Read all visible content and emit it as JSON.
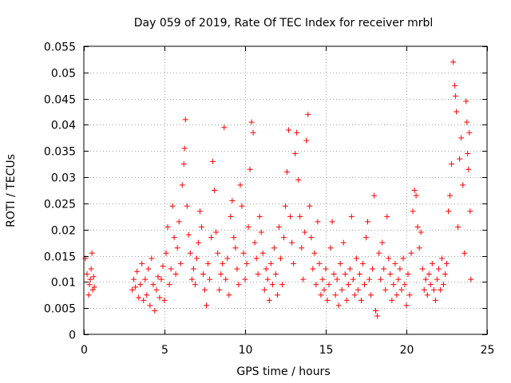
{
  "chart_data": {
    "type": "scatter",
    "title": "Day 059 of 2019, Rate Of TEC Index for receiver mrbl",
    "xlabel": "GPS time / hours",
    "ylabel": "ROTI / TECUs",
    "xlim": [
      0,
      25
    ],
    "ylim": [
      0,
      0.055
    ],
    "xticks": [
      0,
      5,
      10,
      15,
      20,
      25
    ],
    "xtick_labels": [
      "0",
      "5",
      "10",
      "15",
      "20",
      "25"
    ],
    "yticks": [
      0,
      0.005,
      0.01,
      0.015,
      0.02,
      0.025,
      0.03,
      0.035,
      0.04,
      0.045,
      0.05,
      0.055
    ],
    "ytick_labels": [
      "0",
      "0.005",
      "0.01",
      "0.015",
      "0.02",
      "0.025",
      "0.03",
      "0.035",
      "0.04",
      "0.045",
      "0.05",
      "0.055"
    ],
    "grid": true,
    "marker": "+",
    "color": "#ff0000",
    "series": [
      {
        "name": "ROTI",
        "points": [
          [
            0.1,
            0.0145
          ],
          [
            0.2,
            0.0115
          ],
          [
            0.3,
            0.0075
          ],
          [
            0.35,
            0.0095
          ],
          [
            0.4,
            0.0105
          ],
          [
            0.45,
            0.0125
          ],
          [
            0.5,
            0.0155
          ],
          [
            0.55,
            0.0085
          ],
          [
            0.6,
            0.011
          ],
          [
            0.65,
            0.009
          ],
          [
            3.0,
            0.0085
          ],
          [
            3.1,
            0.0105
          ],
          [
            3.2,
            0.009
          ],
          [
            3.3,
            0.012
          ],
          [
            3.4,
            0.007
          ],
          [
            3.5,
            0.0095
          ],
          [
            3.6,
            0.0135
          ],
          [
            3.7,
            0.0065
          ],
          [
            3.8,
            0.0105
          ],
          [
            3.9,
            0.0075
          ],
          [
            4.0,
            0.0125
          ],
          [
            4.1,
            0.0055
          ],
          [
            4.2,
            0.0145
          ],
          [
            4.3,
            0.0095
          ],
          [
            4.4,
            0.0045
          ],
          [
            4.5,
            0.0085
          ],
          [
            4.6,
            0.011
          ],
          [
            4.7,
            0.007
          ],
          [
            4.8,
            0.0105
          ],
          [
            4.9,
            0.013
          ],
          [
            5.0,
            0.0065
          ],
          [
            5.1,
            0.0155
          ],
          [
            5.2,
            0.0205
          ],
          [
            5.3,
            0.0095
          ],
          [
            5.4,
            0.0125
          ],
          [
            5.5,
            0.0245
          ],
          [
            5.6,
            0.0185
          ],
          [
            5.7,
            0.0115
          ],
          [
            5.8,
            0.0165
          ],
          [
            5.9,
            0.0215
          ],
          [
            6.0,
            0.0135
          ],
          [
            6.1,
            0.0285
          ],
          [
            6.2,
            0.0325
          ],
          [
            6.25,
            0.0355
          ],
          [
            6.3,
            0.041
          ],
          [
            6.4,
            0.0245
          ],
          [
            6.5,
            0.019
          ],
          [
            6.6,
            0.0155
          ],
          [
            6.7,
            0.0105
          ],
          [
            6.8,
            0.0125
          ],
          [
            6.9,
            0.0095
          ],
          [
            7.0,
            0.0145
          ],
          [
            7.1,
            0.0175
          ],
          [
            7.2,
            0.0235
          ],
          [
            7.3,
            0.0205
          ],
          [
            7.4,
            0.0115
          ],
          [
            7.5,
            0.0085
          ],
          [
            7.6,
            0.0055
          ],
          [
            7.7,
            0.0135
          ],
          [
            7.8,
            0.0105
          ],
          [
            7.9,
            0.0185
          ],
          [
            8.0,
            0.033
          ],
          [
            8.1,
            0.0275
          ],
          [
            8.2,
            0.0195
          ],
          [
            8.3,
            0.0155
          ],
          [
            8.4,
            0.0085
          ],
          [
            8.5,
            0.0115
          ],
          [
            8.6,
            0.0135
          ],
          [
            8.7,
            0.0395
          ],
          [
            8.8,
            0.0105
          ],
          [
            8.9,
            0.0145
          ],
          [
            9.0,
            0.0075
          ],
          [
            9.1,
            0.0225
          ],
          [
            9.2,
            0.0255
          ],
          [
            9.3,
            0.0185
          ],
          [
            9.4,
            0.0165
          ],
          [
            9.5,
            0.0125
          ],
          [
            9.6,
            0.0095
          ],
          [
            9.7,
            0.0285
          ],
          [
            9.8,
            0.0245
          ],
          [
            9.9,
            0.0155
          ],
          [
            10.0,
            0.0105
          ],
          [
            10.1,
            0.0135
          ],
          [
            10.2,
            0.0205
          ],
          [
            10.3,
            0.0315
          ],
          [
            10.4,
            0.0405
          ],
          [
            10.5,
            0.0385
          ],
          [
            10.6,
            0.0175
          ],
          [
            10.7,
            0.0145
          ],
          [
            10.8,
            0.0115
          ],
          [
            10.9,
            0.0225
          ],
          [
            11.0,
            0.0195
          ],
          [
            11.1,
            0.0155
          ],
          [
            11.2,
            0.0085
          ],
          [
            11.3,
            0.0125
          ],
          [
            11.4,
            0.0105
          ],
          [
            11.5,
            0.0065
          ],
          [
            11.6,
            0.0135
          ],
          [
            11.7,
            0.0095
          ],
          [
            11.8,
            0.0165
          ],
          [
            11.9,
            0.0115
          ],
          [
            12.0,
            0.0075
          ],
          [
            12.1,
            0.0205
          ],
          [
            12.2,
            0.0145
          ],
          [
            12.3,
            0.0095
          ],
          [
            12.4,
            0.0185
          ],
          [
            12.5,
            0.0245
          ],
          [
            12.6,
            0.031
          ],
          [
            12.7,
            0.039
          ],
          [
            12.8,
            0.0225
          ],
          [
            12.9,
            0.0175
          ],
          [
            13.0,
            0.0135
          ],
          [
            13.1,
            0.0345
          ],
          [
            13.2,
            0.0385
          ],
          [
            13.3,
            0.0295
          ],
          [
            13.4,
            0.0225
          ],
          [
            13.5,
            0.0165
          ],
          [
            13.6,
            0.0105
          ],
          [
            13.7,
            0.0195
          ],
          [
            13.8,
            0.037
          ],
          [
            13.9,
            0.042
          ],
          [
            14.0,
            0.0245
          ],
          [
            14.1,
            0.0185
          ],
          [
            14.2,
            0.0125
          ],
          [
            14.3,
            0.0155
          ],
          [
            14.4,
            0.0095
          ],
          [
            14.5,
            0.0215
          ],
          [
            14.6,
            0.0135
          ],
          [
            14.7,
            0.0075
          ],
          [
            14.8,
            0.0105
          ],
          [
            14.9,
            0.0085
          ],
          [
            15.0,
            0.0125
          ],
          [
            15.1,
            0.0065
          ],
          [
            15.2,
            0.0095
          ],
          [
            15.3,
            0.0165
          ],
          [
            15.4,
            0.0215
          ],
          [
            15.5,
            0.0115
          ],
          [
            15.6,
            0.0075
          ],
          [
            15.7,
            0.0105
          ],
          [
            15.8,
            0.0055
          ],
          [
            15.9,
            0.0135
          ],
          [
            16.0,
            0.0085
          ],
          [
            16.1,
            0.0175
          ],
          [
            16.2,
            0.0115
          ],
          [
            16.3,
            0.0065
          ],
          [
            16.4,
            0.0095
          ],
          [
            16.5,
            0.0125
          ],
          [
            16.6,
            0.0225
          ],
          [
            16.7,
            0.0105
          ],
          [
            16.8,
            0.0075
          ],
          [
            16.9,
            0.0145
          ],
          [
            17.0,
            0.0085
          ],
          [
            17.1,
            0.0115
          ],
          [
            17.2,
            0.0065
          ],
          [
            17.3,
            0.0135
          ],
          [
            17.4,
            0.0095
          ],
          [
            17.5,
            0.0185
          ],
          [
            17.6,
            0.0215
          ],
          [
            17.7,
            0.0105
          ],
          [
            17.8,
            0.0075
          ],
          [
            17.9,
            0.0125
          ],
          [
            18.0,
            0.0265
          ],
          [
            18.1,
            0.0045
          ],
          [
            18.2,
            0.0035
          ],
          [
            18.3,
            0.0155
          ],
          [
            18.4,
            0.0105
          ],
          [
            18.5,
            0.0175
          ],
          [
            18.6,
            0.0125
          ],
          [
            18.7,
            0.0085
          ],
          [
            18.8,
            0.0225
          ],
          [
            18.9,
            0.0145
          ],
          [
            19.0,
            0.0115
          ],
          [
            19.1,
            0.0065
          ],
          [
            19.2,
            0.0095
          ],
          [
            19.3,
            0.0135
          ],
          [
            19.4,
            0.0075
          ],
          [
            19.5,
            0.0105
          ],
          [
            19.6,
            0.0125
          ],
          [
            19.7,
            0.0085
          ],
          [
            19.8,
            0.0145
          ],
          [
            19.9,
            0.0095
          ],
          [
            20.0,
            0.0055
          ],
          [
            20.1,
            0.0115
          ],
          [
            20.2,
            0.0075
          ],
          [
            20.3,
            0.0155
          ],
          [
            20.4,
            0.0235
          ],
          [
            20.5,
            0.0275
          ],
          [
            20.6,
            0.0265
          ],
          [
            20.7,
            0.0205
          ],
          [
            20.8,
            0.0165
          ],
          [
            20.9,
            0.0195
          ],
          [
            21.0,
            0.0125
          ],
          [
            21.1,
            0.0085
          ],
          [
            21.2,
            0.0105
          ],
          [
            21.3,
            0.0075
          ],
          [
            21.4,
            0.0115
          ],
          [
            21.5,
            0.0095
          ],
          [
            21.6,
            0.0135
          ],
          [
            21.7,
            0.0085
          ],
          [
            21.8,
            0.0065
          ],
          [
            21.9,
            0.0105
          ],
          [
            22.0,
            0.0125
          ],
          [
            22.1,
            0.0085
          ],
          [
            22.2,
            0.0145
          ],
          [
            22.3,
            0.0095
          ],
          [
            22.4,
            0.0115
          ],
          [
            22.5,
            0.0135
          ],
          [
            22.6,
            0.0235
          ],
          [
            22.7,
            0.0265
          ],
          [
            22.8,
            0.0325
          ],
          [
            22.9,
            0.052
          ],
          [
            23.0,
            0.0475
          ],
          [
            23.05,
            0.0455
          ],
          [
            23.1,
            0.0425
          ],
          [
            23.2,
            0.0205
          ],
          [
            23.3,
            0.0335
          ],
          [
            23.4,
            0.0375
          ],
          [
            23.5,
            0.0285
          ],
          [
            23.6,
            0.0155
          ],
          [
            23.7,
            0.0445
          ],
          [
            23.75,
            0.0405
          ],
          [
            23.8,
            0.0345
          ],
          [
            23.85,
            0.0315
          ],
          [
            23.9,
            0.0385
          ],
          [
            23.95,
            0.0235
          ],
          [
            24.0,
            0.0105
          ]
        ]
      }
    ]
  }
}
